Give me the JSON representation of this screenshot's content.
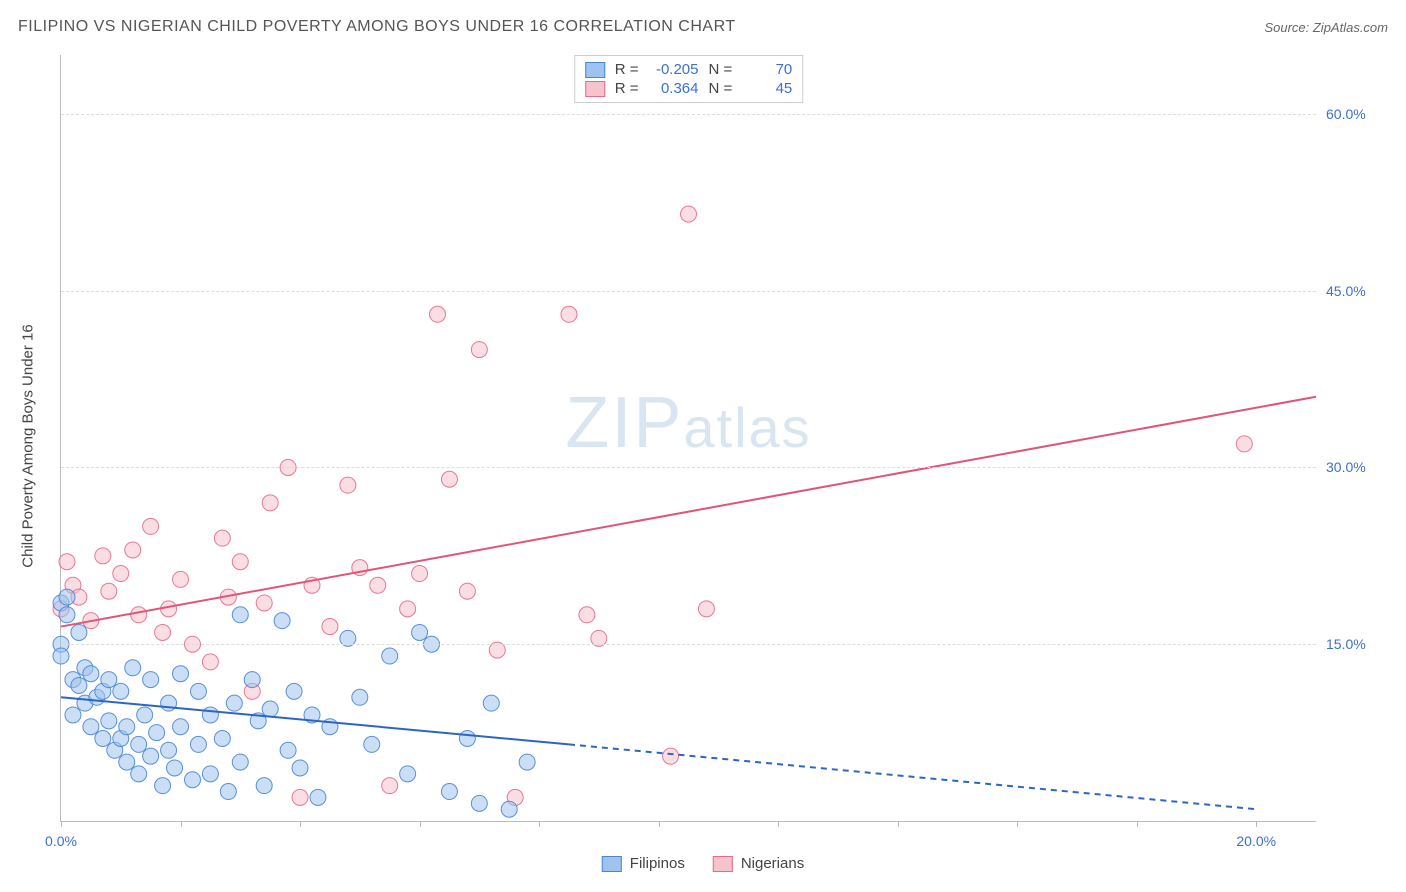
{
  "title": "FILIPINO VS NIGERIAN CHILD POVERTY AMONG BOYS UNDER 16 CORRELATION CHART",
  "source_label": "Source: ",
  "source_name": "ZipAtlas.com",
  "watermark_main": "ZIP",
  "watermark_sub": "atlas",
  "y_axis_label": "Child Poverty Among Boys Under 16",
  "chart": {
    "type": "scatter",
    "background_color": "#ffffff",
    "grid_color": "#dcdcdc",
    "axis_color": "#bbbbbb",
    "xlim": [
      0,
      21
    ],
    "ylim": [
      0,
      65
    ],
    "x_ticks": [
      0,
      2,
      4,
      6,
      8,
      10,
      12,
      14,
      16,
      18,
      20
    ],
    "x_tick_labels": {
      "0": "0.0%",
      "20": "20.0%"
    },
    "y_ticks": [
      15,
      30,
      45,
      60
    ],
    "y_tick_labels": {
      "15": "15.0%",
      "30": "30.0%",
      "45": "45.0%",
      "60": "60.0%"
    },
    "axis_label_color": "#3b6fd6",
    "axis_label_fontsize": 14,
    "marker_radius": 8,
    "marker_opacity": 0.55,
    "marker_stroke_opacity": 0.9,
    "trend_line_width": 2
  },
  "series": {
    "filipinos": {
      "label": "Filipinos",
      "fill_color": "#9ec3ee",
      "stroke_color": "#4a85d6",
      "line_color": "#2b66c4",
      "R": "-0.205",
      "N": "70",
      "trend": {
        "x1": 0,
        "y1": 10.5,
        "x2_solid": 8.5,
        "y2_solid": 6.5,
        "x2_dashed": 20,
        "y2_dashed": 1.0
      },
      "points": [
        [
          0.0,
          15.0
        ],
        [
          0.0,
          14.0
        ],
        [
          0.0,
          18.5
        ],
        [
          0.1,
          19.0
        ],
        [
          0.1,
          17.5
        ],
        [
          0.2,
          9.0
        ],
        [
          0.2,
          12.0
        ],
        [
          0.3,
          16.0
        ],
        [
          0.3,
          11.5
        ],
        [
          0.4,
          13.0
        ],
        [
          0.4,
          10.0
        ],
        [
          0.5,
          12.5
        ],
        [
          0.5,
          8.0
        ],
        [
          0.6,
          10.5
        ],
        [
          0.7,
          11.0
        ],
        [
          0.7,
          7.0
        ],
        [
          0.8,
          8.5
        ],
        [
          0.8,
          12.0
        ],
        [
          0.9,
          6.0
        ],
        [
          1.0,
          7.0
        ],
        [
          1.0,
          11.0
        ],
        [
          1.1,
          5.0
        ],
        [
          1.1,
          8.0
        ],
        [
          1.2,
          13.0
        ],
        [
          1.3,
          6.5
        ],
        [
          1.3,
          4.0
        ],
        [
          1.4,
          9.0
        ],
        [
          1.5,
          12.0
        ],
        [
          1.5,
          5.5
        ],
        [
          1.6,
          7.5
        ],
        [
          1.7,
          3.0
        ],
        [
          1.8,
          10.0
        ],
        [
          1.8,
          6.0
        ],
        [
          1.9,
          4.5
        ],
        [
          2.0,
          12.5
        ],
        [
          2.0,
          8.0
        ],
        [
          2.2,
          3.5
        ],
        [
          2.3,
          6.5
        ],
        [
          2.3,
          11.0
        ],
        [
          2.5,
          9.0
        ],
        [
          2.5,
          4.0
        ],
        [
          2.7,
          7.0
        ],
        [
          2.8,
          2.5
        ],
        [
          2.9,
          10.0
        ],
        [
          3.0,
          17.5
        ],
        [
          3.0,
          5.0
        ],
        [
          3.2,
          12.0
        ],
        [
          3.3,
          8.5
        ],
        [
          3.4,
          3.0
        ],
        [
          3.5,
          9.5
        ],
        [
          3.7,
          17.0
        ],
        [
          3.8,
          6.0
        ],
        [
          3.9,
          11.0
        ],
        [
          4.0,
          4.5
        ],
        [
          4.2,
          9.0
        ],
        [
          4.3,
          2.0
        ],
        [
          4.5,
          8.0
        ],
        [
          4.8,
          15.5
        ],
        [
          5.0,
          10.5
        ],
        [
          5.2,
          6.5
        ],
        [
          5.5,
          14.0
        ],
        [
          5.8,
          4.0
        ],
        [
          6.0,
          16.0
        ],
        [
          6.2,
          15.0
        ],
        [
          6.5,
          2.5
        ],
        [
          6.8,
          7.0
        ],
        [
          7.0,
          1.5
        ],
        [
          7.2,
          10.0
        ],
        [
          7.5,
          1.0
        ],
        [
          7.8,
          5.0
        ]
      ]
    },
    "nigerians": {
      "label": "Nigerians",
      "fill_color": "#f6c3cd",
      "stroke_color": "#e76a88",
      "line_color": "#e05577",
      "R": "0.364",
      "N": "45",
      "trend": {
        "x1": 0,
        "y1": 16.5,
        "x2_solid": 21,
        "y2_solid": 36.0
      },
      "points": [
        [
          0.0,
          18.0
        ],
        [
          0.1,
          22.0
        ],
        [
          0.2,
          20.0
        ],
        [
          0.3,
          19.0
        ],
        [
          0.5,
          17.0
        ],
        [
          0.7,
          22.5
        ],
        [
          0.8,
          19.5
        ],
        [
          1.0,
          21.0
        ],
        [
          1.2,
          23.0
        ],
        [
          1.3,
          17.5
        ],
        [
          1.5,
          25.0
        ],
        [
          1.7,
          16.0
        ],
        [
          1.8,
          18.0
        ],
        [
          2.0,
          20.5
        ],
        [
          2.2,
          15.0
        ],
        [
          2.5,
          13.5
        ],
        [
          2.7,
          24.0
        ],
        [
          2.8,
          19.0
        ],
        [
          3.0,
          22.0
        ],
        [
          3.2,
          11.0
        ],
        [
          3.4,
          18.5
        ],
        [
          3.5,
          27.0
        ],
        [
          3.8,
          30.0
        ],
        [
          4.0,
          2.0
        ],
        [
          4.2,
          20.0
        ],
        [
          4.5,
          16.5
        ],
        [
          4.8,
          28.5
        ],
        [
          5.0,
          21.5
        ],
        [
          5.3,
          20.0
        ],
        [
          5.5,
          3.0
        ],
        [
          5.8,
          18.0
        ],
        [
          6.0,
          21.0
        ],
        [
          6.3,
          43.0
        ],
        [
          6.5,
          29.0
        ],
        [
          6.8,
          19.5
        ],
        [
          7.0,
          40.0
        ],
        [
          7.3,
          14.5
        ],
        [
          7.6,
          2.0
        ],
        [
          8.5,
          43.0
        ],
        [
          8.8,
          17.5
        ],
        [
          9.0,
          15.5
        ],
        [
          10.2,
          5.5
        ],
        [
          10.5,
          51.5
        ],
        [
          10.8,
          18.0
        ],
        [
          19.8,
          32.0
        ]
      ]
    }
  },
  "legend_top": {
    "R_label": "R =",
    "N_label": "N ="
  }
}
